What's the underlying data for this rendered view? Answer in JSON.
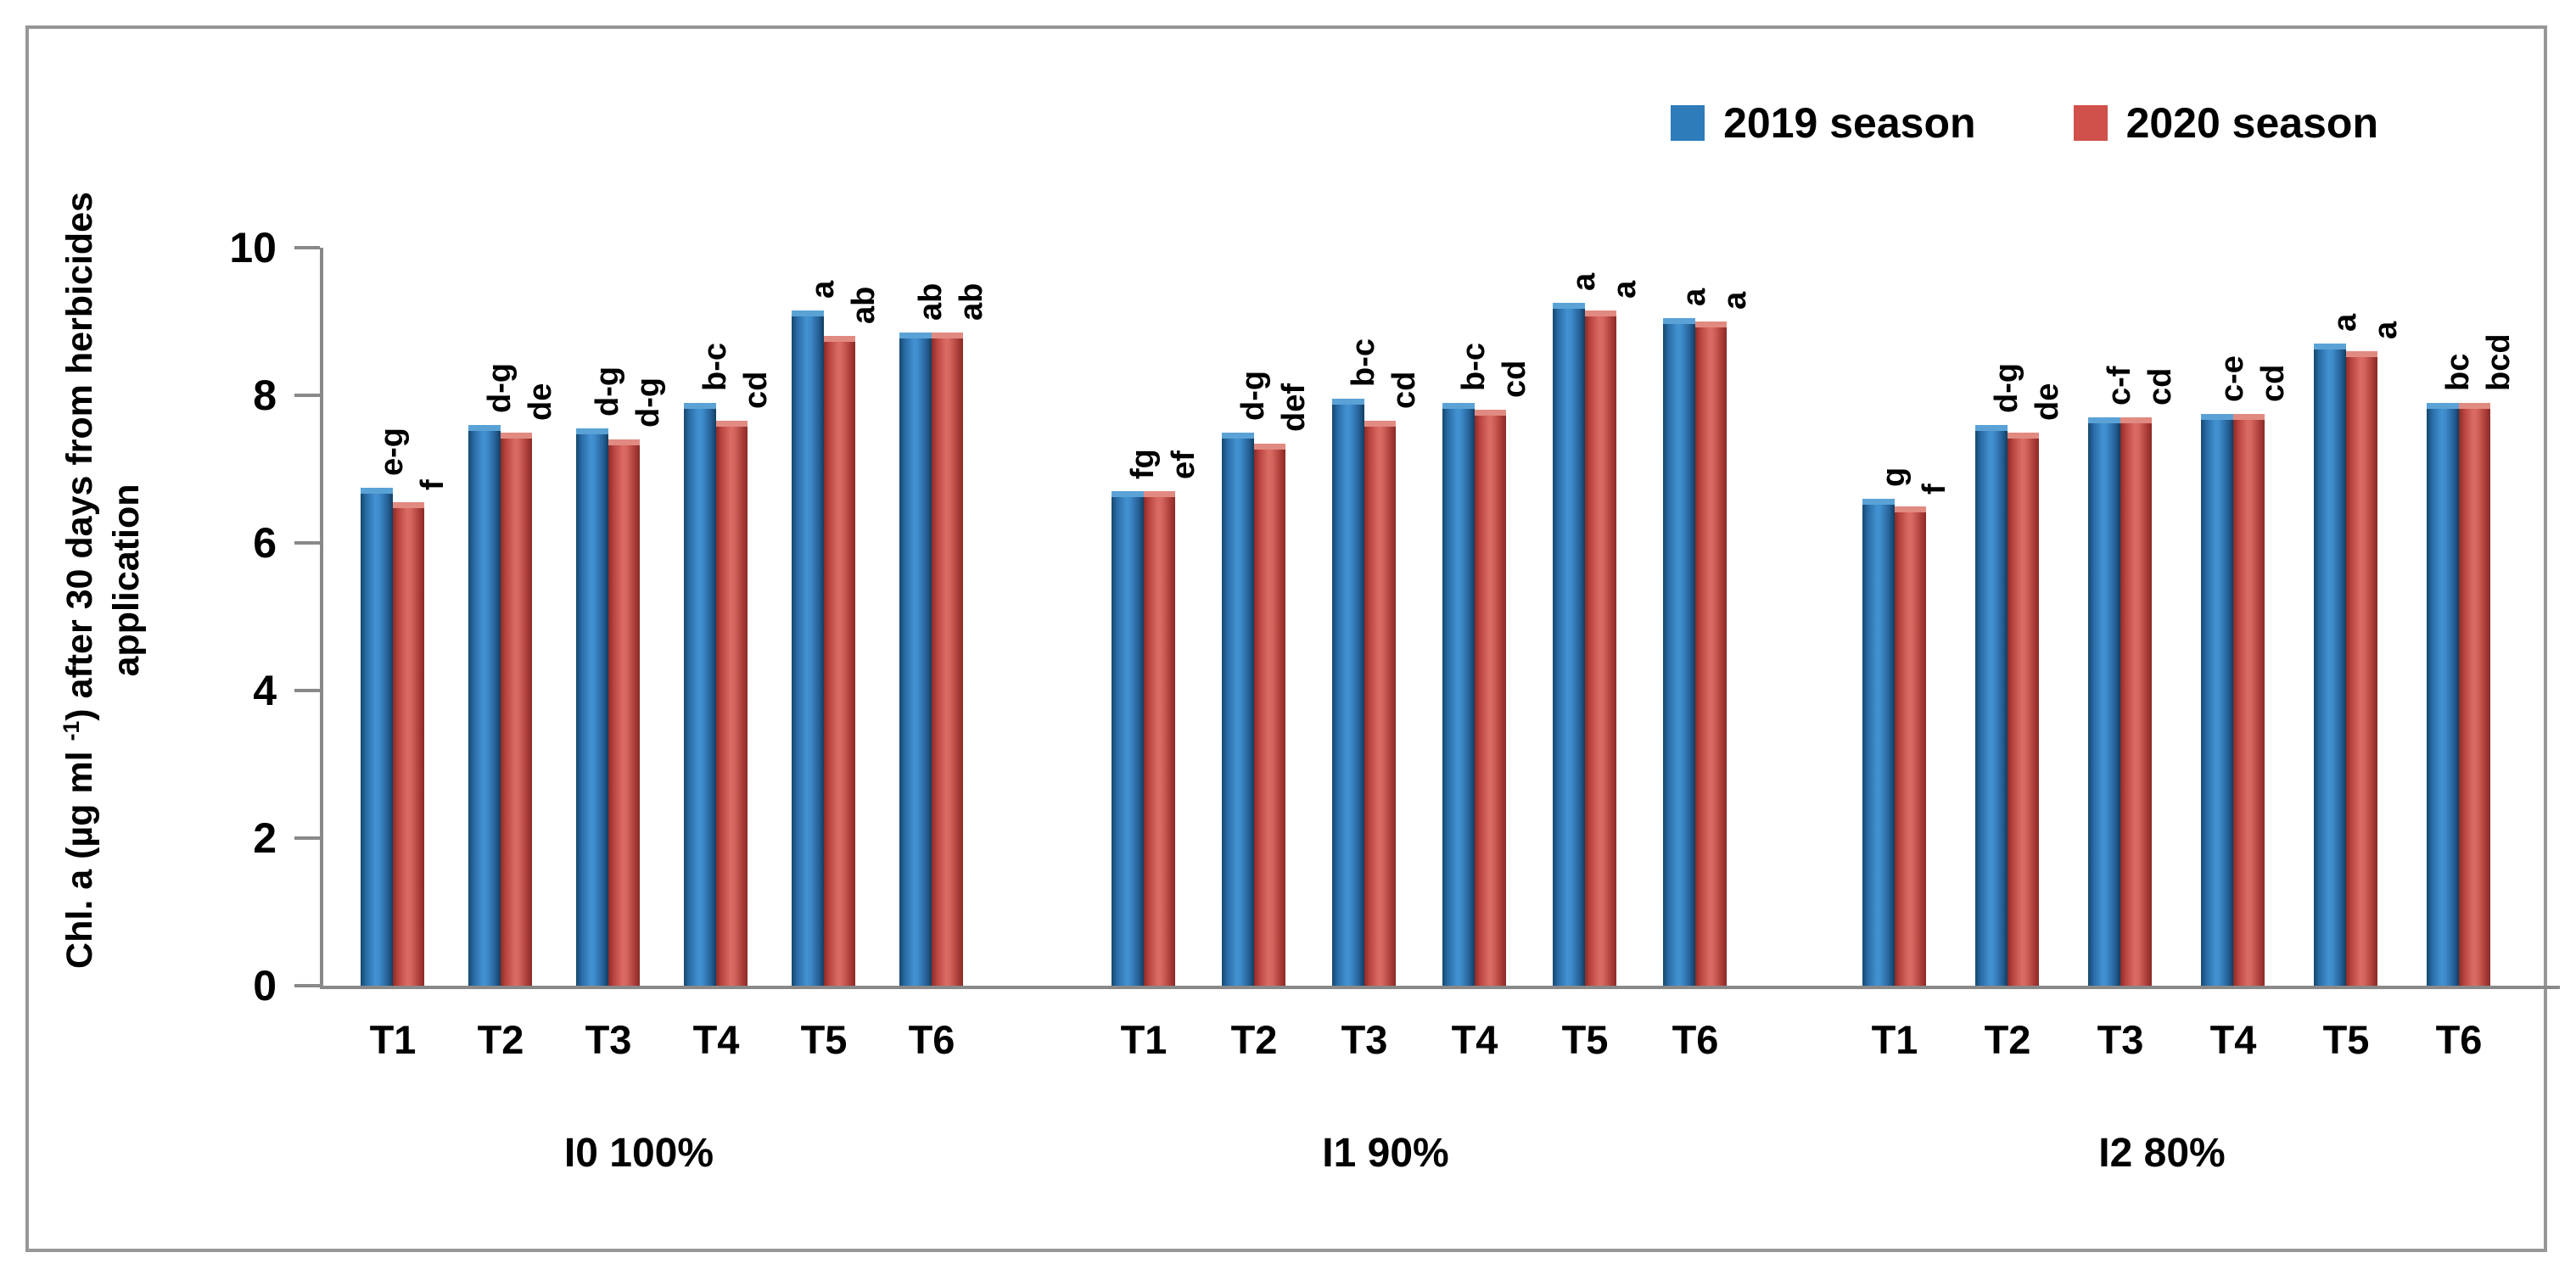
{
  "legend": {
    "items": [
      {
        "label": "2019 season",
        "color": "#2e7cba"
      },
      {
        "label": "2020 season",
        "color": "#d0504b"
      }
    ]
  },
  "y_axis": {
    "title": {
      "prefix": "Chl. a (µg ml ",
      "sup": "-1",
      "suffix": ") after 30 days from herbicides",
      "line2": "application"
    },
    "ticks": [
      0,
      2,
      4,
      6,
      8,
      10
    ],
    "min": 0,
    "max": 10
  },
  "x_axis": {
    "categories": [
      "T1",
      "T2",
      "T3",
      "T4",
      "T5",
      "T6"
    ],
    "group_labels": [
      "I0 100%",
      "I1 90%",
      "I2 80%"
    ]
  },
  "chart_data": {
    "type": "bar",
    "title": "",
    "ylabel": "Chl. a (µg ml -1) after 30 days from herbicides application",
    "xlabel": "",
    "ylim": [
      0,
      10
    ],
    "grid": false,
    "legend_position": "top-right",
    "categories": [
      "T1",
      "T2",
      "T3",
      "T4",
      "T5",
      "T6"
    ],
    "series_colors": {
      "2019 season": "#2e7cba",
      "2020 season": "#d0504b"
    },
    "groups": [
      {
        "name": "I0 100%",
        "series": [
          {
            "name": "2019 season",
            "values": [
              6.75,
              7.6,
              7.55,
              7.9,
              9.15,
              8.85
            ],
            "letters": [
              "e-g",
              "d-g",
              "d-g",
              "b-c",
              "a",
              "ab"
            ]
          },
          {
            "name": "2020 season",
            "values": [
              6.55,
              7.5,
              7.4,
              7.65,
              8.8,
              8.85
            ],
            "letters": [
              "f",
              "de",
              "d-g",
              "cd",
              "ab",
              "ab"
            ]
          }
        ]
      },
      {
        "name": "I1 90%",
        "series": [
          {
            "name": "2019 season",
            "values": [
              6.7,
              7.5,
              7.95,
              7.9,
              9.25,
              9.05
            ],
            "letters": [
              "fg",
              "d-g",
              "b-c",
              "b-c",
              "a",
              "a"
            ]
          },
          {
            "name": "2020 season",
            "values": [
              6.7,
              7.35,
              7.65,
              7.8,
              9.15,
              9.0
            ],
            "letters": [
              "ef",
              "def",
              "cd",
              "cd",
              "a",
              "a"
            ]
          }
        ]
      },
      {
        "name": "I2 80%",
        "series": [
          {
            "name": "2019 season",
            "values": [
              6.6,
              7.6,
              7.7,
              7.75,
              8.7,
              7.9
            ],
            "letters": [
              "g",
              "d-g",
              "c-f",
              "c-e",
              "a",
              "bc"
            ]
          },
          {
            "name": "2020 season",
            "values": [
              6.5,
              7.5,
              7.7,
              7.75,
              8.6,
              7.9
            ],
            "letters": [
              "f",
              "de",
              "cd",
              "cd",
              "a",
              "bcd"
            ]
          }
        ]
      }
    ]
  },
  "colors": {
    "axis": "#898989",
    "frame_border": "#979797",
    "text": "#000000"
  }
}
